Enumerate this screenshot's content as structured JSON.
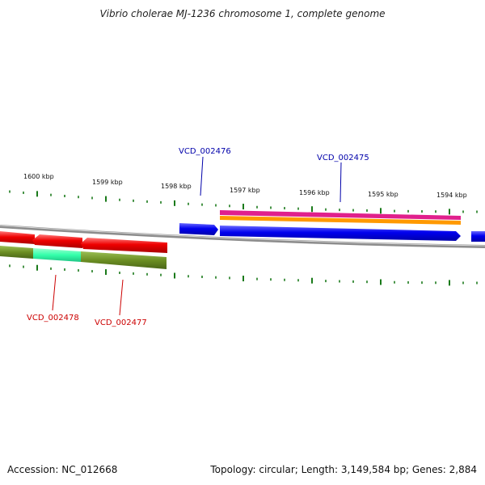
{
  "title": "Vibrio cholerae MJ-1236 chromosome 1, complete genome",
  "accession": "Accession: NC_012668",
  "summary": "Topology: circular; Length: 3,149,584 bp; Genes: 2,884",
  "colors": {
    "tick": "#1a7a1a",
    "backbone": "#888888",
    "forward_gene": "#0000ee",
    "reverse_gene": "#ee0000",
    "forward_label": "#0000aa",
    "reverse_label": "#cc0000",
    "feature_olive": "#6b8e23",
    "feature_cyan": "#33ffaa",
    "feature_magenta": "#e0208c",
    "feature_orange": "#ff9900"
  },
  "scale_labels": [
    "1600 kbp",
    "1599 kbp",
    "1598 kbp",
    "1597 kbp",
    "1596 kbp",
    "1595 kbp",
    "1594 kbp"
  ],
  "genes": {
    "forward": [
      "VCD_002476",
      "VCD_002475"
    ],
    "reverse": [
      "VCD_002478",
      "VCD_002477"
    ]
  }
}
